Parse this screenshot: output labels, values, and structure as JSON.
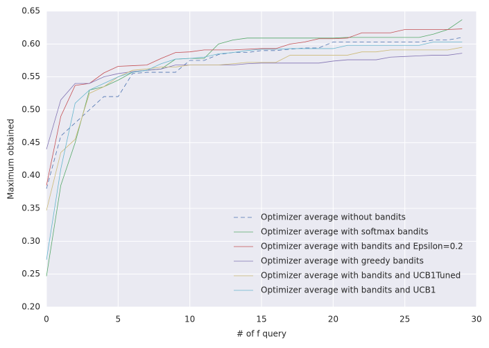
{
  "chart_data": {
    "type": "line",
    "xlabel": "# of f query",
    "ylabel": "Maximum obtained",
    "x": [
      0,
      1,
      2,
      3,
      4,
      5,
      6,
      7,
      8,
      9,
      10,
      11,
      12,
      13,
      14,
      15,
      16,
      17,
      18,
      19,
      20,
      21,
      22,
      23,
      24,
      25,
      26,
      27,
      28,
      29
    ],
    "xlim": [
      0,
      30
    ],
    "xticks": [
      0,
      5,
      10,
      15,
      20,
      25,
      30
    ],
    "ylim": [
      0.2,
      0.65
    ],
    "yticks": [
      {
        "value": 0.2,
        "label": "0.20"
      },
      0.25,
      {
        "value": 0.3,
        "label": "0.30"
      },
      0.35,
      {
        "value": 0.4,
        "label": "0.40"
      },
      0.45,
      {
        "value": 0.5,
        "label": "0.50"
      },
      0.55,
      {
        "value": 0.6,
        "label": "0.60"
      },
      0.65
    ],
    "grid": true,
    "legend": "lower right",
    "series": [
      {
        "name": "Optimizer average without bandits",
        "color": "#4c72b0",
        "linestyle": "dashed",
        "values": [
          0.38,
          0.46,
          0.48,
          0.5,
          0.52,
          0.52,
          0.555,
          0.557,
          0.557,
          0.557,
          0.575,
          0.575,
          0.584,
          0.587,
          0.587,
          0.59,
          0.59,
          0.592,
          0.594,
          0.594,
          0.603,
          0.603,
          0.603,
          0.603,
          0.603,
          0.603,
          0.603,
          0.606,
          0.606,
          0.61
        ]
      },
      {
        "name": "Optimizer average with softmax bandits",
        "color": "#55a868",
        "linestyle": "solid",
        "values": [
          0.247,
          0.385,
          0.45,
          0.53,
          0.535,
          0.545,
          0.557,
          0.56,
          0.562,
          0.577,
          0.578,
          0.578,
          0.6,
          0.606,
          0.609,
          0.609,
          0.609,
          0.609,
          0.609,
          0.609,
          0.609,
          0.61,
          0.61,
          0.61,
          0.61,
          0.61,
          0.61,
          0.615,
          0.622,
          0.637
        ]
      },
      {
        "name": "Optimizer average with bandits and Epsilon=0.2",
        "color": "#c44e52",
        "linestyle": "solid",
        "values": [
          0.385,
          0.49,
          0.537,
          0.54,
          0.556,
          0.566,
          0.567,
          0.568,
          0.578,
          0.587,
          0.588,
          0.591,
          0.591,
          0.591,
          0.592,
          0.593,
          0.593,
          0.6,
          0.603,
          0.608,
          0.608,
          0.609,
          0.617,
          0.617,
          0.617,
          0.622,
          0.622,
          0.622,
          0.622,
          0.623
        ]
      },
      {
        "name": "Optimizer average with greedy bandits",
        "color": "#8172b2",
        "linestyle": "solid",
        "values": [
          0.44,
          0.515,
          0.54,
          0.54,
          0.55,
          0.555,
          0.558,
          0.56,
          0.562,
          0.568,
          0.568,
          0.568,
          0.568,
          0.568,
          0.57,
          0.571,
          0.571,
          0.571,
          0.571,
          0.571,
          0.574,
          0.576,
          0.576,
          0.576,
          0.58,
          0.581,
          0.582,
          0.583,
          0.583,
          0.586
        ]
      },
      {
        "name": "Optimizer average with bandits and UCB1Tuned",
        "color": "#ccb974",
        "linestyle": "solid",
        "values": [
          0.347,
          0.435,
          0.455,
          0.525,
          0.535,
          0.55,
          0.56,
          0.562,
          0.565,
          0.565,
          0.568,
          0.568,
          0.568,
          0.57,
          0.572,
          0.572,
          0.572,
          0.583,
          0.583,
          0.583,
          0.583,
          0.583,
          0.588,
          0.588,
          0.591,
          0.591,
          0.591,
          0.591,
          0.591,
          0.595
        ]
      },
      {
        "name": "Optimizer average with bandits and UCB1",
        "color": "#64b5cd",
        "linestyle": "solid",
        "values": [
          0.272,
          0.41,
          0.51,
          0.53,
          0.54,
          0.55,
          0.557,
          0.56,
          0.57,
          0.577,
          0.578,
          0.58,
          0.585,
          0.587,
          0.59,
          0.592,
          0.592,
          0.593,
          0.593,
          0.593,
          0.593,
          0.598,
          0.598,
          0.598,
          0.598,
          0.598,
          0.598,
          0.603,
          0.603,
          0.603
        ]
      }
    ]
  }
}
